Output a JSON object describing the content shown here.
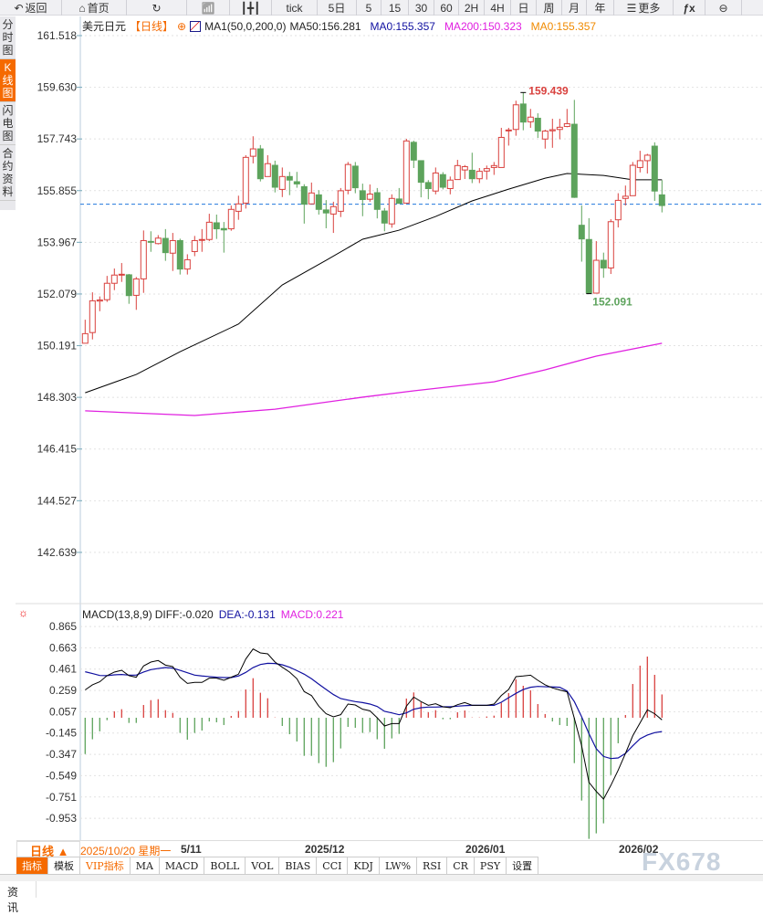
{
  "toolbar": {
    "items": [
      {
        "label": "返回",
        "icon": "back-arrow-icon"
      },
      {
        "label": "首页",
        "icon": "home-icon"
      },
      {
        "label": "",
        "icon": "refresh-icon"
      },
      {
        "label": "",
        "icon": "bar-chart-icon"
      },
      {
        "label": "",
        "icon": "candlestick-icon"
      },
      {
        "label": "tick"
      },
      {
        "label": "5日"
      },
      {
        "label": "5"
      },
      {
        "label": "15"
      },
      {
        "label": "30"
      },
      {
        "label": "60"
      },
      {
        "label": "2H"
      },
      {
        "label": "4H"
      },
      {
        "label": "日"
      },
      {
        "label": "周"
      },
      {
        "label": "月"
      },
      {
        "label": "年"
      },
      {
        "label": "更多",
        "icon": "menu-icon"
      },
      {
        "label": "",
        "icon": "fx-icon"
      },
      {
        "label": "",
        "icon": "zoom-out-icon"
      }
    ]
  },
  "left_tabs": [
    {
      "label": "分时图"
    },
    {
      "label": "K线图",
      "active": true
    },
    {
      "label": "闪电图"
    },
    {
      "label": "合约资料"
    }
  ],
  "legend": {
    "symbol": "美元日元",
    "period": "【日线】",
    "indicator": "MA1(50,0,200,0)",
    "ma50": "MA50:156.281",
    "ma0a": "MA0:155.357",
    "ma200": "MA200:150.323",
    "ma0b": "MA0:155.357"
  },
  "macd_legend": {
    "name": "MACD(13,8,9)",
    "diff": "DIFF:-0.020",
    "dea": "DEA:-0.131",
    "macd": "MACD:0.221"
  },
  "colors": {
    "up": "#d9413e",
    "down": "#5da35c",
    "ma50": "#000000",
    "ma200": "#e020e0",
    "dea": "#1010a0",
    "accent": "#f56a00",
    "current_line": "#2277dd"
  },
  "chart_data": [
    {
      "type": "candlestick",
      "price_ticks": [
        "161.518",
        "159.630",
        "157.743",
        "155.855",
        "153.967",
        "152.079",
        "150.191",
        "148.303",
        "146.415",
        "144.527",
        "142.639"
      ],
      "ylim": [
        142.639,
        161.518
      ],
      "current_price": 155.357,
      "annotations": {
        "high": "159.439",
        "low": "152.091"
      },
      "ohlc": [
        [
          150.28,
          150.63,
          151.14,
          150.28
        ],
        [
          150.67,
          151.83,
          152.14,
          150.42
        ],
        [
          151.82,
          151.86,
          151.99,
          151.45
        ],
        [
          151.87,
          152.47,
          152.74,
          151.79
        ],
        [
          152.47,
          152.77,
          153.01,
          152.22
        ],
        [
          152.77,
          152.8,
          153.21,
          152.52
        ],
        [
          152.78,
          152.02,
          152.81,
          151.72
        ],
        [
          152.03,
          152.63,
          152.7,
          151.5
        ],
        [
          152.63,
          154.03,
          154.4,
          152.12
        ],
        [
          154.0,
          153.99,
          154.37,
          153.62
        ],
        [
          153.92,
          154.12,
          154.23,
          153.89
        ],
        [
          154.11,
          153.59,
          154.45,
          153.29
        ],
        [
          153.57,
          154.03,
          154.31,
          152.92
        ],
        [
          154.03,
          152.99,
          154.1,
          152.79
        ],
        [
          152.99,
          153.33,
          153.53,
          152.79
        ],
        [
          153.63,
          154.03,
          154.2,
          153.46
        ],
        [
          154.06,
          154.07,
          154.45,
          153.62
        ],
        [
          154.07,
          154.7,
          155.01,
          154.01
        ],
        [
          154.68,
          154.46,
          154.98,
          154.09
        ],
        [
          154.47,
          154.42,
          154.71,
          153.59
        ],
        [
          154.46,
          155.17,
          155.31,
          154.39
        ],
        [
          155.1,
          155.37,
          155.67,
          154.79
        ],
        [
          155.4,
          157.07,
          157.15,
          155.2
        ],
        [
          157.11,
          157.38,
          157.84,
          156.85
        ],
        [
          157.38,
          156.29,
          157.52,
          156.19
        ],
        [
          156.37,
          156.84,
          157.15,
          156.37
        ],
        [
          156.78,
          155.98,
          156.95,
          155.79
        ],
        [
          155.9,
          156.37,
          156.7,
          155.62
        ],
        [
          156.37,
          156.24,
          156.54,
          155.69
        ],
        [
          156.18,
          156.1,
          156.54,
          155.96
        ],
        [
          156.0,
          155.36,
          156.09,
          154.65
        ],
        [
          155.37,
          155.77,
          156.15,
          155.37
        ],
        [
          155.7,
          155.17,
          155.87,
          154.98
        ],
        [
          155.15,
          155.04,
          155.51,
          154.48
        ],
        [
          155.0,
          155.27,
          155.45,
          154.31
        ],
        [
          155.1,
          155.85,
          155.95,
          154.89
        ],
        [
          155.87,
          156.81,
          156.9,
          155.72
        ],
        [
          156.75,
          155.96,
          156.9,
          155.76
        ],
        [
          155.85,
          155.53,
          156.11,
          154.92
        ],
        [
          155.54,
          155.73,
          156.08,
          155.45
        ],
        [
          155.78,
          155.17,
          155.95,
          154.84
        ],
        [
          155.11,
          154.67,
          155.22,
          154.37
        ],
        [
          154.64,
          155.57,
          155.72,
          154.5
        ],
        [
          155.55,
          155.39,
          155.95,
          155.39
        ],
        [
          155.4,
          157.67,
          157.75,
          155.4
        ],
        [
          157.62,
          156.97,
          157.68,
          156.68
        ],
        [
          156.95,
          156.16,
          156.95,
          155.61
        ],
        [
          156.15,
          155.93,
          156.24,
          155.54
        ],
        [
          155.84,
          156.5,
          156.7,
          155.72
        ],
        [
          156.44,
          155.98,
          156.53,
          155.9
        ],
        [
          155.93,
          156.24,
          156.37,
          155.72
        ],
        [
          156.26,
          156.77,
          156.98,
          156.26
        ],
        [
          156.61,
          156.73,
          156.79,
          156.28
        ],
        [
          156.6,
          156.29,
          157.24,
          156.13
        ],
        [
          156.29,
          156.56,
          156.68,
          156.13
        ],
        [
          156.57,
          156.66,
          156.77,
          156.26
        ],
        [
          156.7,
          156.77,
          156.9,
          156.43
        ],
        [
          156.7,
          157.8,
          158.15,
          156.7
        ],
        [
          158.04,
          158.07,
          158.15,
          157.5
        ],
        [
          158.09,
          158.99,
          159.14,
          157.86
        ],
        [
          159.02,
          158.36,
          159.439,
          158.06
        ],
        [
          158.37,
          158.54,
          158.84,
          158.15
        ],
        [
          158.5,
          158.03,
          158.68,
          157.78
        ],
        [
          157.74,
          158.03,
          158.08,
          157.39
        ],
        [
          158.04,
          158.08,
          158.48,
          157.42
        ],
        [
          158.09,
          158.17,
          158.48,
          157.73
        ],
        [
          158.2,
          158.3,
          158.84,
          158.17
        ],
        [
          158.28,
          155.61,
          159.17,
          155.59
        ],
        [
          154.59,
          154.09,
          155.31,
          153.26
        ],
        [
          154.07,
          152.12,
          154.85,
          152.091
        ],
        [
          152.11,
          153.31,
          154.01,
          152.11
        ],
        [
          153.31,
          153.03,
          153.59,
          152.67
        ],
        [
          153.03,
          154.72,
          154.81,
          152.81
        ],
        [
          154.79,
          155.5,
          155.76,
          154.51
        ],
        [
          155.57,
          155.65,
          156.04,
          155.31
        ],
        [
          155.67,
          156.78,
          156.9,
          155.67
        ],
        [
          156.7,
          156.95,
          157.31,
          156.52
        ],
        [
          156.95,
          157.15,
          157.2,
          156.48
        ],
        [
          157.48,
          155.84,
          157.62,
          155.48
        ],
        [
          155.7,
          155.31,
          156.24,
          155.06
        ]
      ],
      "ma50": {
        "index": [
          0,
          7,
          13,
          21,
          27,
          33,
          38,
          43,
          48,
          53,
          58,
          63,
          66,
          71,
          75,
          79
        ],
        "values": [
          148.47,
          149.14,
          149.97,
          150.98,
          152.41,
          153.31,
          154.08,
          154.41,
          154.91,
          155.48,
          155.91,
          156.31,
          156.48,
          156.41,
          156.25,
          156.25
        ]
      },
      "ma200": {
        "index": [
          0,
          15,
          26,
          38,
          45,
          56,
          63,
          70,
          79
        ],
        "values": [
          147.81,
          147.64,
          147.87,
          148.31,
          148.54,
          148.87,
          149.31,
          149.81,
          150.28
        ]
      },
      "x_labels": [
        "2025/10/20 星期一",
        "5/11",
        "2025/12",
        "2026/01",
        "2026/02"
      ]
    },
    {
      "type": "macd",
      "ticks": [
        "0.865",
        "0.663",
        "0.461",
        "0.259",
        "0.057",
        "-0.145",
        "-0.347",
        "-0.549",
        "-0.751",
        "-0.953"
      ],
      "ylim": [
        -1.15,
        0.95
      ],
      "macd": [
        -0.344,
        -0.204,
        -0.129,
        -0.023,
        0.061,
        0.081,
        -0.049,
        -0.049,
        0.121,
        0.167,
        0.176,
        0.072,
        0.046,
        -0.144,
        -0.208,
        -0.144,
        -0.121,
        -0.035,
        -0.043,
        -0.069,
        0.017,
        0.064,
        0.268,
        0.375,
        0.237,
        0.185,
        0.003,
        -0.078,
        -0.156,
        -0.225,
        -0.361,
        -0.361,
        -0.43,
        -0.465,
        -0.421,
        -0.291,
        -0.087,
        -0.095,
        -0.144,
        -0.136,
        -0.204,
        -0.294,
        -0.196,
        -0.153,
        0.182,
        0.24,
        0.147,
        0.052,
        0.072,
        -0.014,
        -0.014,
        0.052,
        0.069,
        0.003,
        0.003,
        0.012,
        0.02,
        0.141,
        0.234,
        0.364,
        0.303,
        0.26,
        0.13,
        0.035,
        -0.035,
        -0.069,
        -0.078,
        -0.43,
        -0.785,
        -1.148,
        -1.096,
        -1.001,
        -0.543,
        -0.242,
        0.026,
        0.32,
        0.494,
        0.58,
        0.407,
        0.221
      ],
      "diff": [
        0.264,
        0.312,
        0.341,
        0.399,
        0.433,
        0.45,
        0.399,
        0.384,
        0.491,
        0.528,
        0.543,
        0.499,
        0.485,
        0.384,
        0.326,
        0.335,
        0.335,
        0.375,
        0.375,
        0.355,
        0.384,
        0.413,
        0.557,
        0.652,
        0.615,
        0.606,
        0.528,
        0.479,
        0.433,
        0.37,
        0.248,
        0.211,
        0.11,
        0.038,
        0.009,
        0.029,
        0.13,
        0.121,
        0.081,
        0.066,
        0.0,
        -0.078,
        -0.055,
        -0.055,
        0.11,
        0.196,
        0.153,
        0.118,
        0.133,
        0.104,
        0.095,
        0.124,
        0.144,
        0.118,
        0.118,
        0.118,
        0.13,
        0.211,
        0.268,
        0.39,
        0.396,
        0.404,
        0.355,
        0.312,
        0.283,
        0.263,
        0.246,
        -0.006,
        -0.266,
        -0.612,
        -0.698,
        -0.771,
        -0.641,
        -0.497,
        -0.338,
        -0.171,
        -0.049,
        0.075,
        0.038,
        -0.02
      ],
      "dea": [
        0.436,
        0.419,
        0.401,
        0.399,
        0.407,
        0.41,
        0.404,
        0.404,
        0.433,
        0.456,
        0.467,
        0.476,
        0.47,
        0.45,
        0.427,
        0.404,
        0.396,
        0.39,
        0.384,
        0.381,
        0.381,
        0.396,
        0.43,
        0.476,
        0.505,
        0.516,
        0.514,
        0.502,
        0.479,
        0.447,
        0.413,
        0.37,
        0.318,
        0.268,
        0.22,
        0.182,
        0.167,
        0.153,
        0.144,
        0.13,
        0.107,
        0.061,
        0.046,
        0.029,
        0.046,
        0.081,
        0.095,
        0.101,
        0.101,
        0.104,
        0.104,
        0.11,
        0.115,
        0.118,
        0.118,
        0.118,
        0.118,
        0.147,
        0.19,
        0.231,
        0.268,
        0.289,
        0.297,
        0.294,
        0.292,
        0.289,
        0.254,
        0.153,
        0.009,
        -0.15,
        -0.294,
        -0.367,
        -0.387,
        -0.381,
        -0.338,
        -0.266,
        -0.199,
        -0.164,
        -0.141,
        -0.131
      ]
    }
  ],
  "xaxis": {
    "period": "日线 ▲",
    "date": "2025/10/20 星期一",
    "labels": [
      "5/11",
      "2025/12",
      "2026/01",
      "2026/02"
    ]
  },
  "indicator_tabs": [
    {
      "label": "指标",
      "active": true
    },
    {
      "label": "模板"
    },
    {
      "label": "VIP指标",
      "vip": true
    },
    {
      "label": "MA"
    },
    {
      "label": "MACD"
    },
    {
      "label": "BOLL"
    },
    {
      "label": "VOL"
    },
    {
      "label": "BIAS"
    },
    {
      "label": "CCI"
    },
    {
      "label": "KDJ"
    },
    {
      "label": "LW%"
    },
    {
      "label": "RSI"
    },
    {
      "label": "CR"
    },
    {
      "label": "PSY"
    },
    {
      "label": "设置"
    }
  ],
  "news_tab": "资讯",
  "watermark": "FX678"
}
